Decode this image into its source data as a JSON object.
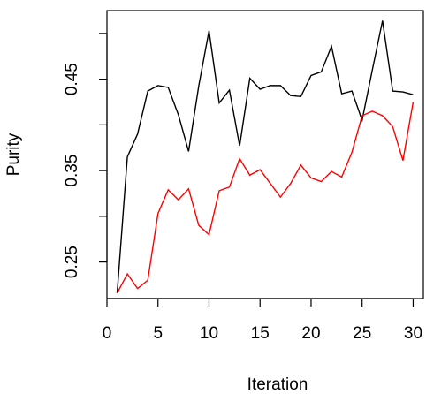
{
  "chart_data": {
    "type": "line",
    "title": "",
    "xlabel": "Iteration",
    "ylabel": "Purity",
    "xlim": [
      0,
      31
    ],
    "ylim": [
      0.21,
      0.525
    ],
    "x_ticks": [
      0,
      5,
      10,
      15,
      20,
      25,
      30
    ],
    "y_ticks": [
      0.25,
      0.3,
      0.35,
      0.4,
      0.45,
      0.5
    ],
    "y_tick_labels": [
      "0.25",
      "",
      "0.35",
      "",
      "0.45",
      ""
    ],
    "grid": false,
    "legend": "none",
    "x": [
      1,
      2,
      3,
      4,
      5,
      6,
      7,
      8,
      9,
      10,
      11,
      12,
      13,
      14,
      15,
      16,
      17,
      18,
      19,
      20,
      21,
      22,
      23,
      24,
      25,
      26,
      27,
      28,
      29,
      30
    ],
    "series": [
      {
        "color": "#000000",
        "values": [
          0.216,
          0.365,
          0.39,
          0.437,
          0.443,
          0.441,
          0.411,
          0.371,
          0.443,
          0.503,
          0.424,
          0.438,
          0.377,
          0.451,
          0.439,
          0.443,
          0.443,
          0.432,
          0.431,
          0.454,
          0.458,
          0.486,
          0.434,
          0.437,
          0.405,
          0.46,
          0.514,
          0.437,
          0.436,
          0.433
        ]
      },
      {
        "color": "#ff0000",
        "values": [
          0.216,
          0.237,
          0.221,
          0.23,
          0.303,
          0.329,
          0.318,
          0.33,
          0.29,
          0.28,
          0.328,
          0.332,
          0.363,
          0.345,
          0.351,
          0.336,
          0.321,
          0.336,
          0.356,
          0.342,
          0.338,
          0.349,
          0.343,
          0.37,
          0.41,
          0.415,
          0.41,
          0.398,
          0.361,
          0.425
        ]
      }
    ]
  }
}
